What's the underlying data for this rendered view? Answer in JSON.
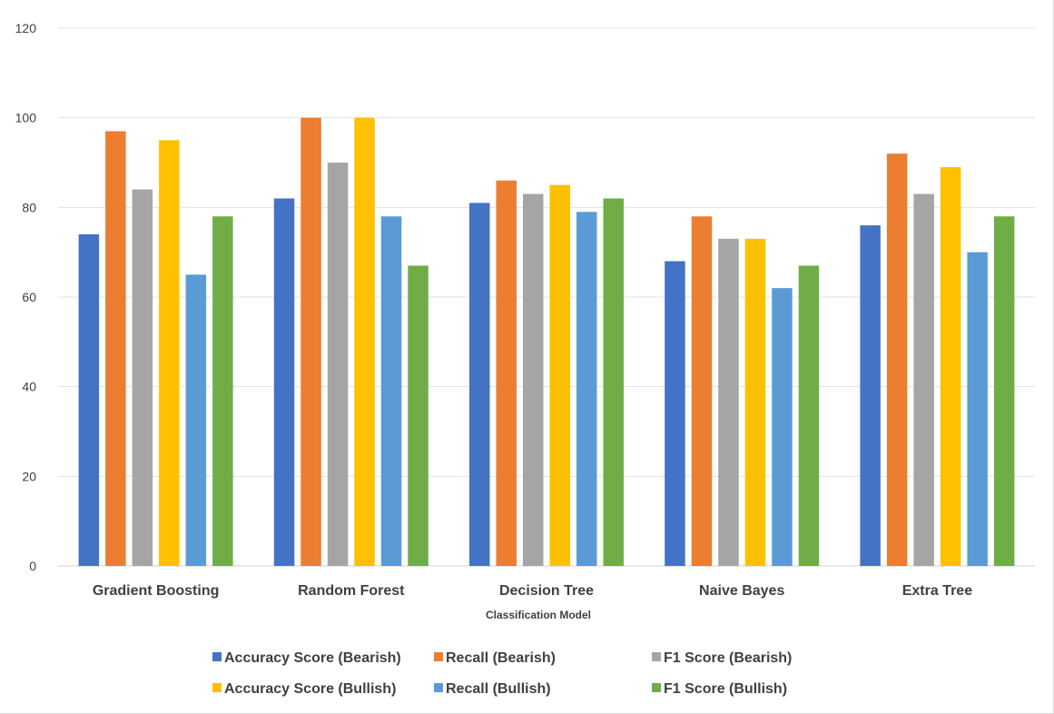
{
  "chart_data": {
    "type": "bar",
    "title": "",
    "xlabel": "Classification Model",
    "ylabel": "",
    "ylim": [
      0,
      120
    ],
    "yticks": [
      0,
      20,
      40,
      60,
      80,
      100,
      120
    ],
    "grid": true,
    "legend_position": "bottom",
    "categories": [
      "Gradient Boosting",
      "Random Forest",
      "Decision Tree",
      "Naive Bayes",
      "Extra Tree"
    ],
    "series": [
      {
        "name": "Accuracy Score (Bearish)",
        "color": "#4472c4",
        "values": [
          74,
          82,
          81,
          68,
          76
        ]
      },
      {
        "name": "Recall (Bearish)",
        "color": "#ed7d31",
        "values": [
          97,
          100,
          86,
          78,
          92
        ]
      },
      {
        "name": "F1 Score (Bearish)",
        "color": "#a5a5a5",
        "values": [
          84,
          90,
          83,
          73,
          83
        ]
      },
      {
        "name": "Accuracy Score (Bullish)",
        "color": "#ffc000",
        "values": [
          95,
          100,
          85,
          73,
          89
        ]
      },
      {
        "name": "Recall (Bullish)",
        "color": "#5b9bd5",
        "values": [
          65,
          78,
          79,
          62,
          70
        ]
      },
      {
        "name": "F1 Score (Bullish)",
        "color": "#70ad47",
        "values": [
          78,
          67,
          82,
          67,
          78
        ]
      }
    ]
  }
}
